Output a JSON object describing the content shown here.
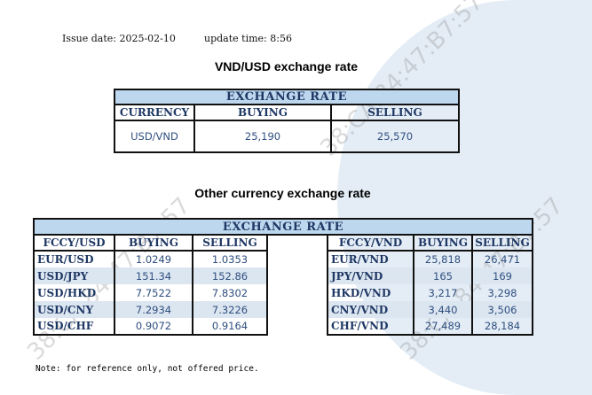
{
  "issue_label": "Issue date:",
  "issue_date": "2025-02-10",
  "update_label": "update time:",
  "update_time": "8:56",
  "vnd_usd": {
    "title": "VND/USD exchange rate",
    "header": "EXCHANGE RATE",
    "columns": [
      "CURRENCY",
      "BUYING",
      "SELLING"
    ],
    "row": {
      "currency": "USD/VND",
      "buying": "25,190",
      "selling": "25,570"
    }
  },
  "other": {
    "title": "Other currency exchange rate",
    "header": "EXCHANGE  RATE",
    "left_columns": [
      "FCCY/USD",
      "BUYING",
      "SELLING"
    ],
    "right_columns": [
      "FCCY/VND",
      "BUYING",
      "SELLING"
    ],
    "rows": [
      {
        "lp": "EUR/USD",
        "lb": "1.0249",
        "ls": "1.0353",
        "rp": "EUR/VND",
        "rb": "25,818",
        "rs": "26,471"
      },
      {
        "lp": "USD/JPY",
        "lb": "151.34",
        "ls": "152.86",
        "rp": "JPY/VND",
        "rb": "165",
        "rs": "169"
      },
      {
        "lp": "USD/HKD",
        "lb": "7.7522",
        "ls": "7.8302",
        "rp": "HKD/VND",
        "rb": "3,217",
        "rs": "3,298"
      },
      {
        "lp": "USD/CNY",
        "lb": "7.2934",
        "ls": "7.3226",
        "rp": "CNY/VND",
        "rb": "3,440",
        "rs": "3,506"
      },
      {
        "lp": "USD/CHF",
        "lb": "0.9072",
        "ls": "0.9164",
        "rp": "CHF/VND",
        "rb": "27,489",
        "rs": "28,184"
      }
    ]
  },
  "note": "Note: for reference only, not offered price.",
  "watermark": "38:CA:84:47:B7:57"
}
